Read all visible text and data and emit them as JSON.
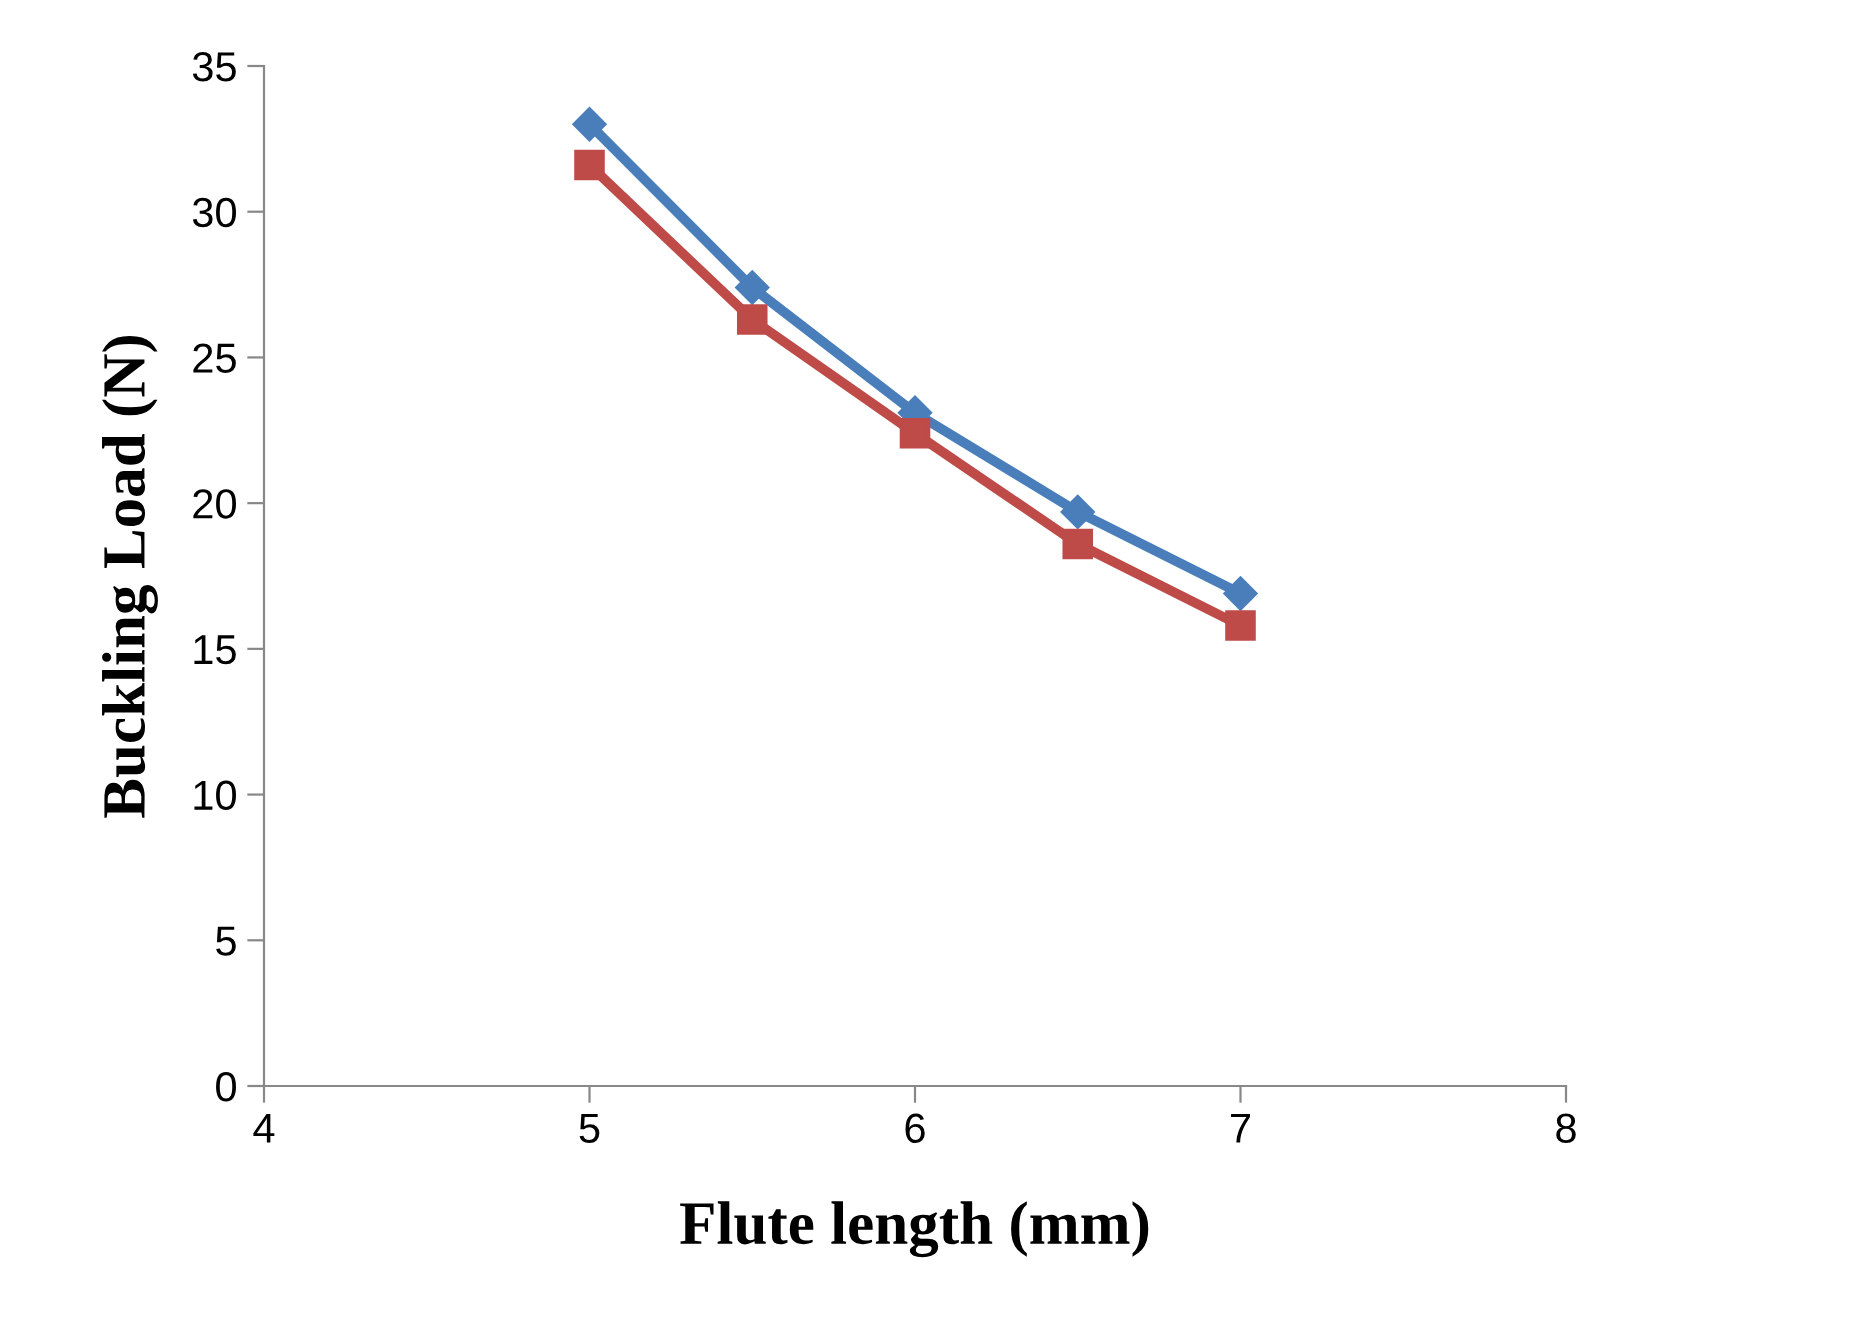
{
  "chart_data": {
    "type": "line",
    "xlabel": "Flute length (mm)",
    "ylabel": "Buckling Load (N)",
    "x": [
      5,
      5.5,
      6,
      6.5,
      7
    ],
    "series": [
      {
        "color": "#4a7ebb",
        "marker": "diamond",
        "values": [
          33.0,
          27.4,
          23.1,
          19.7,
          16.9
        ]
      },
      {
        "color": "#be4b48",
        "marker": "square",
        "values": [
          31.6,
          26.3,
          22.4,
          18.6,
          15.8
        ]
      }
    ],
    "xlim": [
      4,
      8
    ],
    "xticks": [
      4,
      5,
      6,
      7,
      8
    ],
    "ylim": [
      0,
      35
    ],
    "yticks": [
      0,
      5,
      10,
      15,
      20,
      25,
      30,
      35
    ],
    "grid": false,
    "legend": false,
    "line_style": "solid"
  }
}
